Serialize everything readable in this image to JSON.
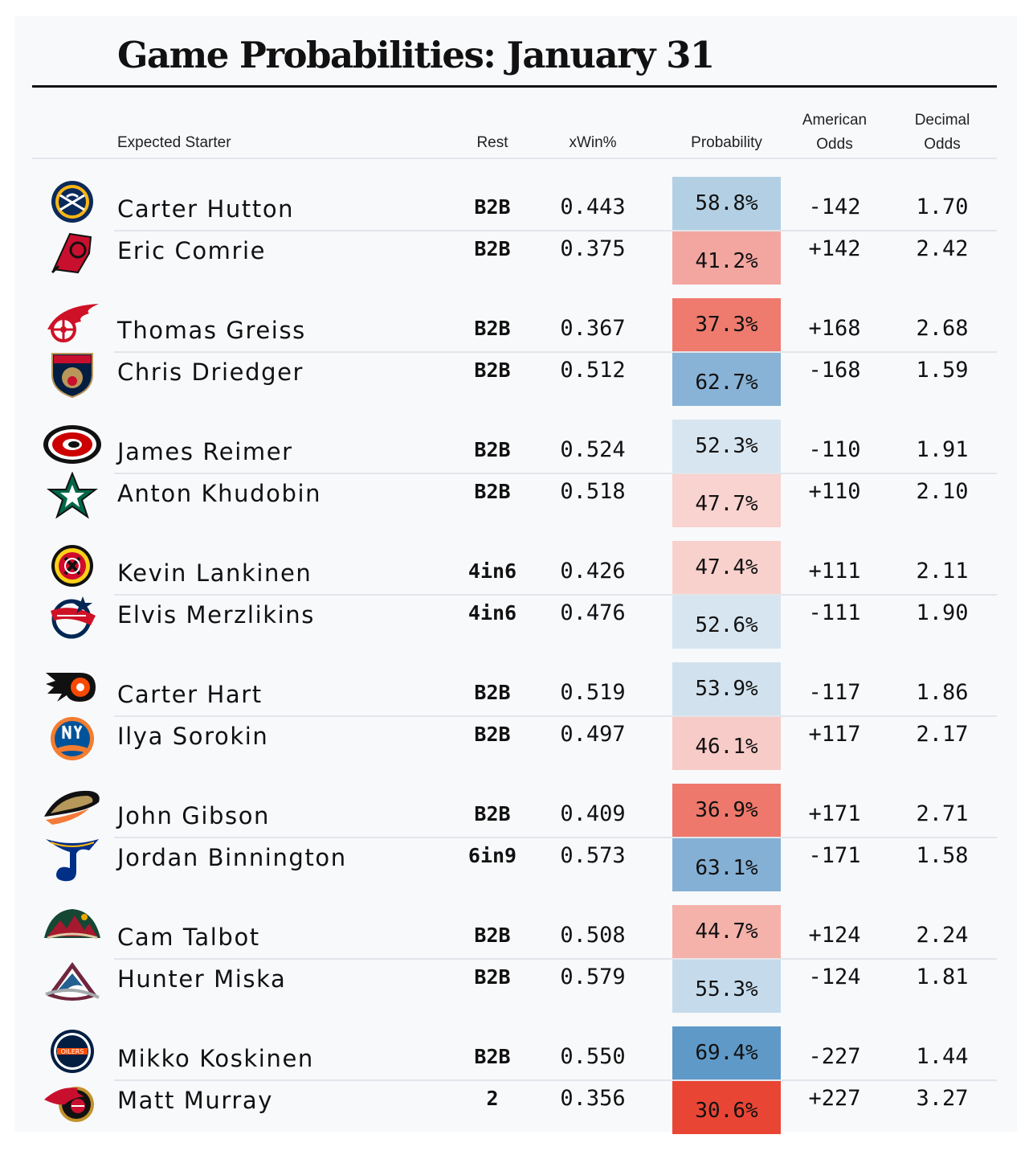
{
  "title": "Game Probabilities: January 31",
  "headers": {
    "starter": "Expected Starter",
    "rest": "Rest",
    "xwin": "xWin%",
    "probability": "Probability",
    "american_line1": "American",
    "american_line2": "Odds",
    "decimal_line1": "Decimal",
    "decimal_line2": "Odds"
  },
  "games": [
    {
      "away": {
        "team_icon": "sabres-logo",
        "name": "Carter Hutton",
        "rest": "B2B",
        "xwin": "0.443",
        "prob": "58.8%",
        "prob_value": 0.588,
        "american": "-142",
        "decimal": "1.70",
        "color": "#b3cfe4"
      },
      "home": {
        "team_icon": "devils-logo",
        "name": "Eric Comrie",
        "rest": "B2B",
        "xwin": "0.375",
        "prob": "41.2%",
        "prob_value": 0.412,
        "american": "+142",
        "decimal": "2.42",
        "color": "#f3a6a0"
      }
    },
    {
      "away": {
        "team_icon": "red-wings-logo",
        "name": "Thomas Greiss",
        "rest": "B2B",
        "xwin": "0.367",
        "prob": "37.3%",
        "prob_value": 0.373,
        "american": "+168",
        "decimal": "2.68",
        "color": "#ee7b6e"
      },
      "home": {
        "team_icon": "panthers-logo",
        "name": "Chris Driedger",
        "rest": "B2B",
        "xwin": "0.512",
        "prob": "62.7%",
        "prob_value": 0.627,
        "american": "-168",
        "decimal": "1.59",
        "color": "#88b2d6"
      }
    },
    {
      "away": {
        "team_icon": "hurricanes-logo",
        "name": "James Reimer",
        "rest": "B2B",
        "xwin": "0.524",
        "prob": "52.3%",
        "prob_value": 0.523,
        "american": "-110",
        "decimal": "1.91",
        "color": "#d7e5f0"
      },
      "home": {
        "team_icon": "stars-logo",
        "name": "Anton Khudobin",
        "rest": "B2B",
        "xwin": "0.518",
        "prob": "47.7%",
        "prob_value": 0.477,
        "american": "+110",
        "decimal": "2.10",
        "color": "#f8d3cf"
      }
    },
    {
      "away": {
        "team_icon": "blackhawks-logo",
        "name": "Kevin Lankinen",
        "rest": "4in6",
        "xwin": "0.426",
        "prob": "47.4%",
        "prob_value": 0.474,
        "american": "+111",
        "decimal": "2.11",
        "color": "#f8d1cd"
      },
      "home": {
        "team_icon": "blue-jackets-logo",
        "name": "Elvis Merzlikins",
        "rest": "4in6",
        "xwin": "0.476",
        "prob": "52.6%",
        "prob_value": 0.526,
        "american": "-111",
        "decimal": "1.90",
        "color": "#d7e5f0"
      }
    },
    {
      "away": {
        "team_icon": "flyers-logo",
        "name": "Carter Hart",
        "rest": "B2B",
        "xwin": "0.519",
        "prob": "53.9%",
        "prob_value": 0.539,
        "american": "-117",
        "decimal": "1.86",
        "color": "#d1e2ee"
      },
      "home": {
        "team_icon": "islanders-logo",
        "name": "Ilya Sorokin",
        "rest": "B2B",
        "xwin": "0.497",
        "prob": "46.1%",
        "prob_value": 0.461,
        "american": "+117",
        "decimal": "2.17",
        "color": "#f7cbc7"
      }
    },
    {
      "away": {
        "team_icon": "ducks-logo",
        "name": "John Gibson",
        "rest": "B2B",
        "xwin": "0.409",
        "prob": "36.9%",
        "prob_value": 0.369,
        "american": "+171",
        "decimal": "2.71",
        "color": "#ee786b"
      },
      "home": {
        "team_icon": "blues-logo",
        "name": "Jordan Binnington",
        "rest": "6in9",
        "xwin": "0.573",
        "prob": "63.1%",
        "prob_value": 0.631,
        "american": "-171",
        "decimal": "1.58",
        "color": "#85b0d5"
      }
    },
    {
      "away": {
        "team_icon": "wild-logo",
        "name": "Cam Talbot",
        "rest": "B2B",
        "xwin": "0.508",
        "prob": "44.7%",
        "prob_value": 0.447,
        "american": "+124",
        "decimal": "2.24",
        "color": "#f4b2ab"
      },
      "home": {
        "team_icon": "avalanche-logo",
        "name": "Hunter Miska",
        "rest": "B2B",
        "xwin": "0.579",
        "prob": "55.3%",
        "prob_value": 0.553,
        "american": "-124",
        "decimal": "1.81",
        "color": "#c5dbec"
      }
    },
    {
      "away": {
        "team_icon": "oilers-logo",
        "name": "Mikko Koskinen",
        "rest": "B2B",
        "xwin": "0.550",
        "prob": "69.4%",
        "prob_value": 0.694,
        "american": "-227",
        "decimal": "1.44",
        "color": "#5f99c8"
      },
      "home": {
        "team_icon": "senators-logo",
        "name": "Matt Murray",
        "rest": "2",
        "xwin": "0.356",
        "prob": "30.6%",
        "prob_value": 0.306,
        "american": "+227",
        "decimal": "3.27",
        "color": "#e94535"
      }
    }
  ]
}
